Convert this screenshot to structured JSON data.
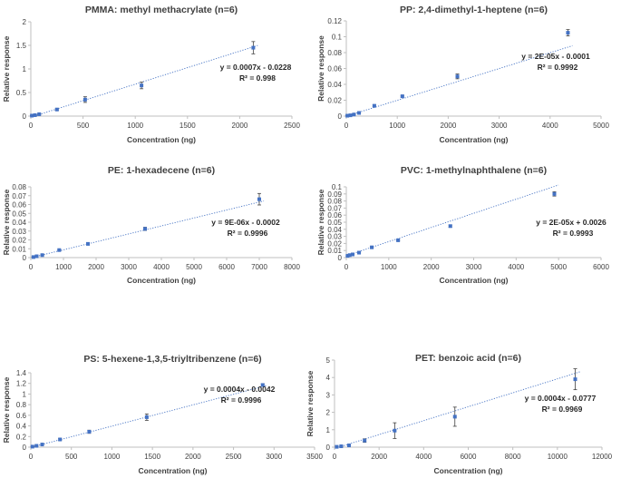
{
  "figure": {
    "accent_color": "#4472c4",
    "axis_color": "#bfbfbf",
    "text_color": "#404040"
  },
  "chart_data": [
    {
      "type": "scatter",
      "title": "PMMA: methyl methacrylate (n=6)",
      "xlabel": "Concentration (ng)",
      "ylabel": "Relative response",
      "xlim": [
        0,
        2500
      ],
      "ylim": [
        0,
        2
      ],
      "xticks": [
        0,
        500,
        1000,
        1500,
        2000,
        2500
      ],
      "yticks": [
        0,
        0.5,
        1,
        1.5,
        2
      ],
      "x_tick_labels": [
        "0",
        "500",
        "1000",
        "1500",
        "2000",
        "2500"
      ],
      "y_tick_labels": [
        "0",
        "0.5",
        "1",
        "1.5",
        "2"
      ],
      "x": [
        10,
        40,
        80,
        250,
        520,
        1060,
        2130
      ],
      "y": [
        0.01,
        0.02,
        0.04,
        0.14,
        0.35,
        0.65,
        1.45
      ],
      "error": [
        0.005,
        0.01,
        0.01,
        0.015,
        0.06,
        0.07,
        0.13
      ],
      "trendline": {
        "slope": 0.0007,
        "intercept": -0.0228,
        "label": "y = 0.0007x - 0.0228",
        "r2_label": "R² = 0.998"
      }
    },
    {
      "type": "scatter",
      "title": "PP: 2,4-dimethyl-1-heptene (n=6)",
      "xlabel": "Concentration (ng)",
      "ylabel": "Relative response",
      "xlim": [
        0,
        5000
      ],
      "ylim": [
        0,
        0.12
      ],
      "xticks": [
        0,
        1000,
        2000,
        3000,
        4000,
        5000
      ],
      "yticks": [
        0,
        0.02,
        0.04,
        0.06,
        0.08,
        0.1,
        0.12
      ],
      "x_tick_labels": [
        "0",
        "1000",
        "2000",
        "3000",
        "4000",
        "5000"
      ],
      "y_tick_labels": [
        "0",
        "0.02",
        "0.04",
        "0.06",
        "0.08",
        "0.1",
        "0.12"
      ],
      "x": [
        20,
        80,
        150,
        250,
        550,
        1100,
        2180,
        4350
      ],
      "y": [
        0.0005,
        0.001,
        0.002,
        0.004,
        0.013,
        0.025,
        0.05,
        0.105
      ],
      "error": [
        0.0003,
        0.0004,
        0.0005,
        0.0006,
        0.001,
        0.001,
        0.003,
        0.004
      ],
      "trendline": {
        "slope": 2e-05,
        "intercept": -0.0001,
        "label": "y = 2E-05x - 0.0001",
        "r2_label": "R² = 0.9992"
      }
    },
    {
      "type": "scatter",
      "title": "PE: 1-hexadecene (n=6)",
      "xlabel": "Concentration (ng)",
      "ylabel": "Relative response",
      "xlim": [
        0,
        8000
      ],
      "ylim": [
        0,
        0.08
      ],
      "xticks": [
        0,
        1000,
        2000,
        3000,
        4000,
        5000,
        6000,
        7000,
        8000
      ],
      "yticks": [
        0,
        0.01,
        0.02,
        0.03,
        0.04,
        0.05,
        0.06,
        0.07,
        0.08
      ],
      "x_tick_labels": [
        "0",
        "1000",
        "2000",
        "3000",
        "4000",
        "5000",
        "6000",
        "7000",
        "8000"
      ],
      "y_tick_labels": [
        "0",
        "0.01",
        "0.02",
        "0.03",
        "0.04",
        "0.05",
        "0.06",
        "0.07",
        "0.08"
      ],
      "x": [
        80,
        180,
        350,
        870,
        1750,
        3500,
        7000
      ],
      "y": [
        0.0006,
        0.0015,
        0.0028,
        0.0085,
        0.0155,
        0.0325,
        0.066
      ],
      "error": [
        0.0002,
        0.0003,
        0.0004,
        0.0006,
        0.0008,
        0.0018,
        0.0065
      ],
      "trendline": {
        "slope": 9e-06,
        "intercept": -0.0002,
        "label": "y = 9E-06x - 0.0002",
        "r2_label": "R² = 0.9996"
      }
    },
    {
      "type": "scatter",
      "title": "PVC: 1-methylnaphthalene (n=6)",
      "xlabel": "Concentration (ng)",
      "ylabel": "Relative response",
      "xlim": [
        0,
        6000
      ],
      "ylim": [
        0,
        0.1
      ],
      "xticks": [
        0,
        1000,
        2000,
        3000,
        4000,
        5000,
        6000
      ],
      "yticks": [
        0,
        0.01,
        0.02,
        0.03,
        0.04,
        0.05,
        0.06,
        0.07,
        0.08,
        0.09,
        0.1
      ],
      "x_tick_labels": [
        "0",
        "1000",
        "2000",
        "3000",
        "4000",
        "5000",
        "6000"
      ],
      "y_tick_labels": [
        "0",
        "0.01",
        "0.02",
        "0.03",
        "0.04",
        "0.05",
        "0.06",
        "0.07",
        "0.08",
        "0.09",
        "0.1"
      ],
      "x": [
        30,
        80,
        150,
        300,
        600,
        1220,
        2450,
        4900
      ],
      "y": [
        0.0025,
        0.0035,
        0.0045,
        0.007,
        0.0145,
        0.0245,
        0.0445,
        0.09
      ],
      "error": [
        0.0003,
        0.0004,
        0.0005,
        0.0006,
        0.001,
        0.001,
        0.0015,
        0.003
      ],
      "trendline": {
        "slope": 2e-05,
        "intercept": 0.0026,
        "label": "y = 2E-05x + 0.0026",
        "r2_label": "R² = 0.9993"
      }
    },
    {
      "type": "scatter",
      "title": "PS: 5-hexene-1,3,5-triyltribenzene (n=6)",
      "xlabel": "Concentration (ng)",
      "ylabel": "Relative response",
      "xlim": [
        0,
        3500
      ],
      "ylim": [
        0,
        1.4
      ],
      "xticks": [
        0,
        500,
        1000,
        1500,
        2000,
        2500,
        3000,
        3500
      ],
      "yticks": [
        0,
        0.2,
        0.4,
        0.6,
        0.8,
        1,
        1.2,
        1.4
      ],
      "x_tick_labels": [
        "0",
        "500",
        "1000",
        "1500",
        "2000",
        "2500",
        "3000",
        "3500"
      ],
      "y_tick_labels": [
        "0",
        "0.2",
        "0.4",
        "0.6",
        "0.8",
        "1",
        "1.2",
        "1.4"
      ],
      "x": [
        20,
        70,
        140,
        360,
        720,
        1430,
        2860
      ],
      "y": [
        0.01,
        0.025,
        0.05,
        0.145,
        0.29,
        0.565,
        1.17
      ],
      "error": [
        0.005,
        0.008,
        0.01,
        0.02,
        0.03,
        0.06,
        0.025
      ],
      "trendline": {
        "slope": 0.0004,
        "intercept": -0.0042,
        "label": "y = 0.0004x - 0.0042",
        "r2_label": "R² = 0.9996"
      }
    },
    {
      "type": "scatter",
      "title": "PET: benzoic acid (n=6)",
      "xlabel": "Concentration (ng)",
      "ylabel": "Relative response",
      "xlim": [
        0,
        12000
      ],
      "ylim": [
        0,
        5
      ],
      "xticks": [
        0,
        2000,
        4000,
        6000,
        8000,
        10000,
        12000
      ],
      "yticks": [
        0,
        1,
        2,
        3,
        4,
        5
      ],
      "x_tick_labels": [
        "0",
        "2000",
        "4000",
        "6000",
        "8000",
        "10000",
        "12000"
      ],
      "y_tick_labels": [
        "0",
        "1",
        "2",
        "3",
        "4",
        "5"
      ],
      "x": [
        100,
        300,
        650,
        1350,
        2700,
        5400,
        10800
      ],
      "y": [
        0.02,
        0.05,
        0.1,
        0.38,
        0.95,
        1.75,
        3.9
      ],
      "error": [
        0.01,
        0.02,
        0.04,
        0.1,
        0.45,
        0.55,
        0.6
      ],
      "trendline": {
        "slope": 0.0004,
        "intercept": -0.0777,
        "label": "y = 0.0004x - 0.0777",
        "r2_label": "R² = 0.9969"
      }
    }
  ]
}
